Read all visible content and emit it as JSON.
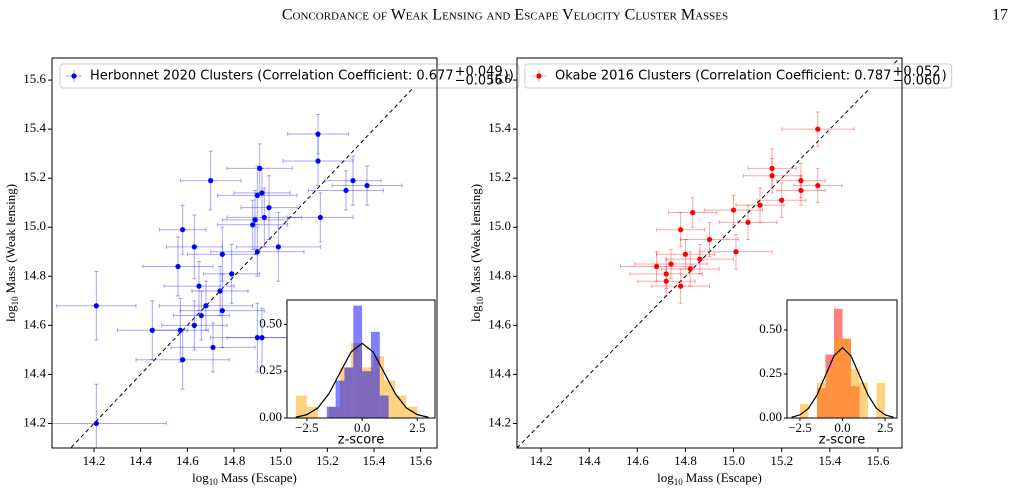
{
  "header": {
    "title": "Concordance of Weak Lensing and Escape Velocity Cluster Masses",
    "page_number": "17"
  },
  "chart_data": [
    {
      "type": "scatter",
      "xlabel_log": "log",
      "xlabel_sub": "10",
      "xlabel": "Mass (Escape)",
      "ylabel_log": "log",
      "ylabel_sub": "10",
      "ylabel": "Mass (Weak lensing)",
      "xlim": [
        14.02,
        15.67
      ],
      "ylim": [
        14.1,
        15.69
      ],
      "xticks": [
        14.2,
        14.4,
        14.6,
        14.8,
        {
          "value": 15,
          "label": "15.0"
        },
        15.2,
        15.4,
        15.6
      ],
      "yticks": [
        14.2,
        14.4,
        14.6,
        14.8,
        {
          "value": 15,
          "label": "15.0"
        },
        15.2,
        15.4,
        15.6
      ],
      "series": [
        {
          "name": "Herbonnet 2020 Clusters (Correlation Coefficient: 0.677",
          "name_sup": "+0.049",
          "name_sub": "−0.056",
          "name_tail": "))",
          "color": "#0000ff",
          "x": [
            14.21,
            14.21,
            14.45,
            14.57,
            14.58,
            14.58,
            14.56,
            14.63,
            14.63,
            14.65,
            14.66,
            14.68,
            14.7,
            14.71,
            14.74,
            14.75,
            14.75,
            14.79,
            14.88,
            14.89,
            14.9,
            14.9,
            14.92,
            14.9,
            14.92,
            14.91,
            14.93,
            14.95,
            14.99,
            15.16,
            15.16,
            15.17,
            15.28,
            15.31,
            15.37
          ],
          "y": [
            14.2,
            14.68,
            14.58,
            14.58,
            14.46,
            14.99,
            14.84,
            14.92,
            14.6,
            14.76,
            14.64,
            14.68,
            15.19,
            14.51,
            14.74,
            14.89,
            14.66,
            14.81,
            15.01,
            15.03,
            14.9,
            14.55,
            14.55,
            15.13,
            15.14,
            15.24,
            15.04,
            15.08,
            14.92,
            15.38,
            15.27,
            15.04,
            15.15,
            15.19,
            15.17
          ],
          "xerr": [
            0.3,
            0.17,
            0.15,
            0.12,
            0.2,
            0.1,
            0.15,
            0.12,
            0.14,
            0.15,
            0.12,
            0.2,
            0.13,
            0.18,
            0.12,
            0.15,
            0.18,
            0.12,
            0.15,
            0.14,
            0.2,
            0.2,
            0.15,
            0.17,
            0.12,
            0.14,
            0.16,
            0.12,
            0.18,
            0.13,
            0.15,
            0.14,
            0.16,
            0.12,
            0.15
          ],
          "yerr": [
            0.16,
            0.14,
            0.12,
            0.13,
            0.12,
            0.1,
            0.12,
            0.13,
            0.1,
            0.1,
            0.1,
            0.1,
            0.12,
            0.1,
            0.1,
            0.11,
            0.15,
            0.12,
            0.1,
            0.12,
            0.1,
            0.14,
            0.12,
            0.12,
            0.1,
            0.1,
            0.12,
            0.13,
            0.14,
            0.08,
            0.1,
            0.1,
            0.08,
            0.1,
            0.08
          ]
        }
      ],
      "inset": {
        "type": "histogram",
        "xlabel": "z-score",
        "xlim": [
          -3.4,
          3.3
        ],
        "ylim": [
          0,
          0.63
        ],
        "xticks": [
          {
            "value": -2.5,
            "label": "−2.5"
          },
          {
            "value": 0,
            "label": "0.0"
          },
          2.5
        ],
        "yticks": [
          {
            "value": 0,
            "label": "0.00"
          },
          {
            "value": 0.25,
            "label": "0.25"
          },
          {
            "value": 0.5,
            "label": "0.50"
          }
        ],
        "series": [
          {
            "color": "#ffa500",
            "bins": [
              -3,
              -2.5,
              -2,
              -1.5,
              -1,
              -0.5,
              0,
              0.5,
              1,
              1.5,
              2,
              2.5
            ],
            "values": [
              0.12,
              0.06,
              0,
              0.06,
              0.27,
              0.4,
              0.27,
              0.33,
              0.2,
              0.12,
              0.06
            ]
          },
          {
            "color": "#0000ff",
            "bins": [
              -1.6,
              -1.2,
              -0.8,
              -0.4,
              0,
              0.4,
              0.8,
              1.2
            ],
            "values": [
              0.06,
              0.2,
              0.27,
              0.6,
              0.25,
              0.46,
              0.12
            ]
          }
        ],
        "curve": {
          "color": "#000000",
          "x": [
            -3,
            -2.5,
            -2,
            -1.5,
            -1,
            -0.5,
            0,
            0.5,
            1,
            1.5,
            2,
            2.5,
            3
          ],
          "y": [
            0.004,
            0.018,
            0.054,
            0.13,
            0.242,
            0.352,
            0.399,
            0.352,
            0.242,
            0.13,
            0.054,
            0.018,
            0.004
          ]
        }
      }
    },
    {
      "type": "scatter",
      "xlabel_log": "log",
      "xlabel_sub": "10",
      "xlabel": "Mass (Escape)",
      "ylabel_log": "log",
      "ylabel_sub": "10",
      "ylabel": "Mass (Weak lensing)",
      "xlim": [
        14.1,
        15.7
      ],
      "ylim": [
        14.1,
        15.69
      ],
      "xticks": [
        14.2,
        14.4,
        14.6,
        14.8,
        {
          "value": 15,
          "label": "15.0"
        },
        15.2,
        15.4,
        15.6
      ],
      "yticks": [
        14.2,
        14.4,
        14.6,
        14.8,
        {
          "value": 15,
          "label": "15.0"
        },
        15.2,
        15.4,
        15.6
      ],
      "series": [
        {
          "name": "Okabe 2016 Clusters (Correlation Coefficient: 0.787",
          "name_sup": "+0.052",
          "name_sub": "−0.060",
          "name_tail": ")",
          "color": "#ff0000",
          "x": [
            15.35,
            15.16,
            15.16,
            15.28,
            15.35,
            15.28,
            15.2,
            15.11,
            15,
            15.06,
            15.01,
            14.9,
            14.83,
            14.78,
            14.82,
            14.8,
            14.72,
            14.74,
            14.72,
            14.68,
            14.78,
            14.86
          ],
          "y": [
            15.4,
            15.24,
            15.21,
            15.19,
            15.17,
            15.15,
            15.11,
            15.09,
            15.07,
            15.02,
            14.9,
            14.95,
            15.06,
            14.99,
            14.83,
            14.89,
            14.81,
            14.85,
            14.78,
            14.84,
            14.76,
            14.87
          ],
          "xerr": [
            0.15,
            0.1,
            0.12,
            0.1,
            0.1,
            0.1,
            0.1,
            0.1,
            0.12,
            0.12,
            0.15,
            0.12,
            0.1,
            0.1,
            0.12,
            0.12,
            0.15,
            0.15,
            0.12,
            0.15,
            0.12,
            0.14
          ],
          "yerr": [
            0.07,
            0.08,
            0.07,
            0.07,
            0.07,
            0.06,
            0.07,
            0.07,
            0.06,
            0.07,
            0.07,
            0.07,
            0.06,
            0.07,
            0.07,
            0.06,
            0.06,
            0.06,
            0.06,
            0.06,
            0.07,
            0.06
          ]
        }
      ],
      "inset": {
        "type": "histogram",
        "xlabel": "z-score",
        "xlim": [
          -3.26,
          3.2
        ],
        "ylim": [
          0,
          0.67
        ],
        "xticks": [
          {
            "value": -2.5,
            "label": "−2.5"
          },
          {
            "value": 0,
            "label": "0.0"
          },
          2.5
        ],
        "yticks": [
          {
            "value": 0,
            "label": "0.00"
          },
          {
            "value": 0.25,
            "label": "0.25"
          },
          {
            "value": 0.5,
            "label": "0.50"
          }
        ],
        "series": [
          {
            "color": "#ff0000",
            "bins": [
              -1.5,
              -1,
              -0.5,
              0,
              0.5,
              1
            ],
            "values": [
              0.17,
              0.36,
              0.62,
              0.45,
              0.18
            ]
          },
          {
            "color": "#ffa500",
            "bins": [
              -2.5,
              -2,
              -1.5,
              -1,
              -0.5,
              0,
              0.5,
              1,
              1.5,
              2,
              2.5
            ],
            "values": [
              0.08,
              0,
              0.2,
              0.28,
              0.45,
              0.45,
              0.28,
              0.2,
              0,
              0.2
            ]
          }
        ],
        "curve": {
          "color": "#000000",
          "x": [
            -3,
            -2.5,
            -2,
            -1.5,
            -1,
            -0.5,
            0,
            0.5,
            1,
            1.5,
            2,
            2.5,
            3
          ],
          "y": [
            0.004,
            0.018,
            0.054,
            0.13,
            0.242,
            0.352,
            0.399,
            0.352,
            0.242,
            0.13,
            0.054,
            0.018,
            0.004
          ]
        }
      }
    }
  ]
}
